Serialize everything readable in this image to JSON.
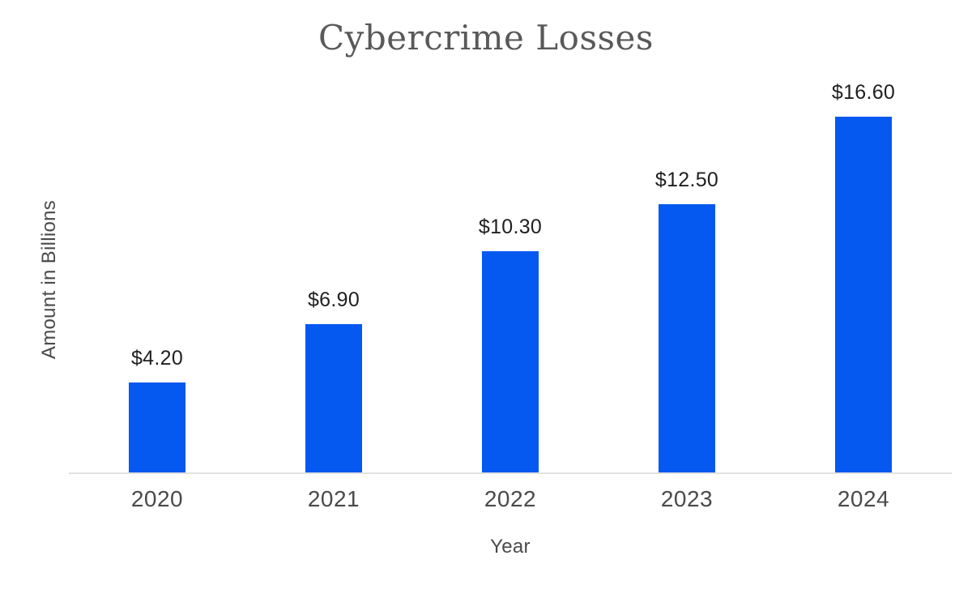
{
  "chart_data": {
    "type": "bar",
    "title": "Cybercrime Losses",
    "xlabel": "Year",
    "ylabel": "Amount in Billions",
    "categories": [
      "2020",
      "2021",
      "2022",
      "2023",
      "2024"
    ],
    "values": [
      4.2,
      6.9,
      10.3,
      12.5,
      16.6
    ],
    "value_labels": [
      "$4.20",
      "$6.90",
      "$10.30",
      "$12.50",
      "$16.60"
    ],
    "ylim": [
      0,
      18.7
    ],
    "grid": false,
    "legend": "none",
    "bar_color": "#0558f0",
    "axis_line_color": "#e2e2e2",
    "title_color": "#595959",
    "label_color": "#1f1f1f",
    "tick_color": "#4a4a4a"
  }
}
